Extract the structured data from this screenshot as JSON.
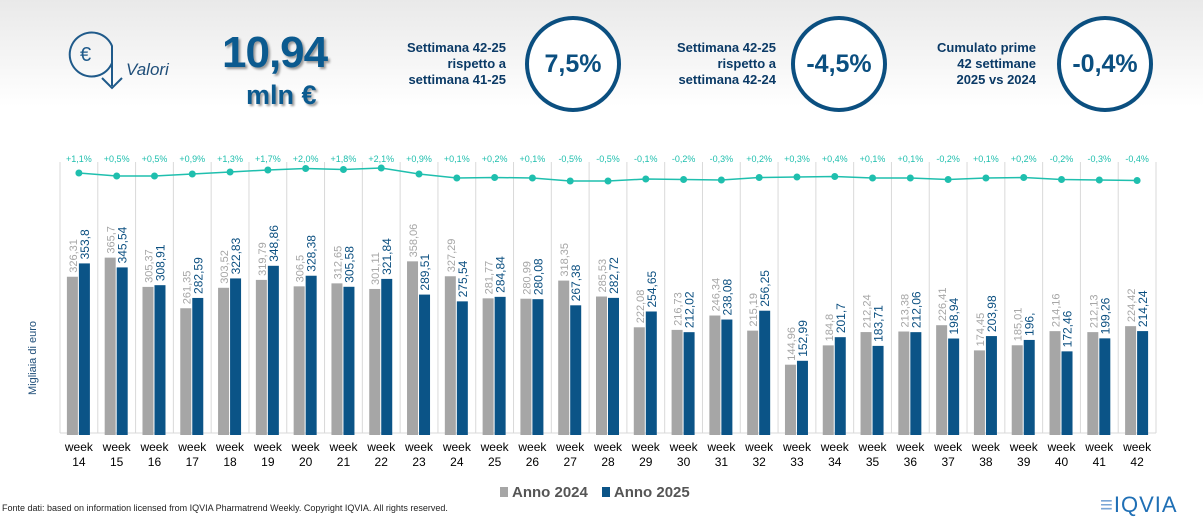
{
  "header": {
    "icon": "euro-down-arrow-icon",
    "valori_label": "Valori",
    "total_value": "10,94",
    "total_unit": "mln €",
    "kpis": [
      {
        "label_lines": [
          "Settimana 42-25",
          "rispetto a",
          "settimana 41-25"
        ],
        "value": "7,5%"
      },
      {
        "label_lines": [
          "Settimana 42-25",
          "rispetto a",
          "settimana 42-24"
        ],
        "value": "-4,5%"
      },
      {
        "label_lines": [
          "Cumulato prime",
          "42 settimane",
          "2025 vs 2024"
        ],
        "value": "-0,4%"
      }
    ]
  },
  "colors": {
    "y2024": "#a6a6a6",
    "y2025": "#0b5487",
    "line": "#1fbfae",
    "navy": "#0b4f80"
  },
  "chart_data": {
    "type": "bar",
    "ylabel": "Migliaia di euro",
    "categories": [
      "week 14",
      "week 15",
      "week 16",
      "week 17",
      "week 18",
      "week 19",
      "week 20",
      "week 21",
      "week 22",
      "week 23",
      "week 24",
      "week 25",
      "week 26",
      "week 27",
      "week 28",
      "week 29",
      "week 30",
      "week 31",
      "week 32",
      "week 33",
      "week 34",
      "week 35",
      "week 36",
      "week 37",
      "week 38",
      "week 39",
      "week 40",
      "week 41",
      "week 42"
    ],
    "series": [
      {
        "name": "Anno 2024",
        "values": [
          326.31,
          365.7,
          305.37,
          261.35,
          303.52,
          319.79,
          306.5,
          312.65,
          301.11,
          358.06,
          327.29,
          281.77,
          280.99,
          318.35,
          285.53,
          222.08,
          216.73,
          246.34,
          215.19,
          144.96,
          184.8,
          212.24,
          213.38,
          226.41,
          174.45,
          185.01,
          214.16,
          212.13,
          224.42
        ],
        "labels": [
          "326,31",
          "365,7",
          "305,37",
          "261,35",
          "303,52",
          "319,79",
          "306,5",
          "312,65",
          "301,11",
          "358,06",
          "327,29",
          "281,77",
          "280,99",
          "318,35",
          "285,53",
          "222,08",
          "216,73",
          "246,34",
          "215,19",
          "144,96",
          "184,8",
          "212,24",
          "213,38",
          "226,41",
          "174,45",
          "185,01",
          "214,16",
          "212,13",
          "224,42"
        ]
      },
      {
        "name": "Anno 2025",
        "values": [
          353.8,
          345.54,
          308.91,
          282.59,
          322.83,
          348.86,
          328.38,
          305.58,
          321.84,
          289.51,
          275.54,
          284.84,
          280.08,
          267.38,
          282.72,
          254.65,
          212.02,
          238.08,
          256.25,
          152.99,
          201.7,
          183.71,
          212.06,
          198.94,
          203.98,
          196,
          172.46,
          199.26,
          214.24
        ],
        "labels": [
          "353,8",
          "345,54",
          "308,91",
          "282,59",
          "322,83",
          "348,86",
          "328,38",
          "305,58",
          "321,84",
          "289,51",
          "275,54",
          "284,84",
          "280,08",
          "267,38",
          "282,72",
          "254,65",
          "212,02",
          "238,08",
          "256,25",
          "152,99",
          "201,7",
          "183,71",
          "212,06",
          "198,94",
          "203,98",
          "196,",
          "172,46",
          "199,26",
          "214,24"
        ]
      }
    ],
    "cumulative_change": {
      "values": [
        1.1,
        0.5,
        0.5,
        0.9,
        1.3,
        1.7,
        2.0,
        1.8,
        2.1,
        0.9,
        0.1,
        0.2,
        0.1,
        -0.5,
        -0.5,
        -0.1,
        -0.2,
        -0.3,
        0.2,
        0.3,
        0.4,
        0.1,
        0.1,
        -0.2,
        0.1,
        0.2,
        -0.2,
        -0.3,
        -0.4
      ],
      "labels": [
        "+1,1%",
        "+0,5%",
        "+0,5%",
        "+0,9%",
        "+1,3%",
        "+1,7%",
        "+2,0%",
        "+1,8%",
        "+2,1%",
        "+0,9%",
        "+0,1%",
        "+0,2%",
        "+0,1%",
        "-0,5%",
        "-0,5%",
        "-0,1%",
        "-0,2%",
        "-0,3%",
        "+0,2%",
        "+0,3%",
        "+0,4%",
        "+0,1%",
        "+0,1%",
        "-0,2%",
        "+0,1%",
        "+0,2%",
        "-0,2%",
        "-0,3%",
        "-0,4%"
      ]
    },
    "ylim": [
      0,
      380
    ],
    "legend": "bottom"
  },
  "footer": {
    "source": "Fonte dati: based on information licensed from IQVIA Pharmatrend Weekly. Copyright IQVIA. All rights reserved.",
    "logo_text": "IQVIA"
  }
}
